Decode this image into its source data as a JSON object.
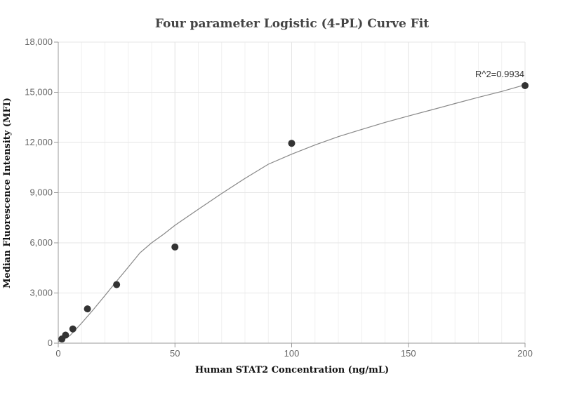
{
  "chart_data": {
    "type": "scatter",
    "title": "Four parameter Logistic (4-PL) Curve Fit",
    "xlabel": "Human STAT2 Concentration (ng/mL)",
    "ylabel": "Median Fluorescence Intensity (MFI)",
    "xlim": [
      0,
      200
    ],
    "ylim": [
      0,
      18000
    ],
    "x_ticks": [
      0,
      50,
      100,
      150,
      200
    ],
    "x_tick_labels": [
      "0",
      "50",
      "100",
      "150",
      "200"
    ],
    "y_ticks": [
      0,
      3000,
      6000,
      9000,
      12000,
      15000,
      18000
    ],
    "y_tick_labels": [
      "0",
      "3,000",
      "6,000",
      "9,000",
      "12,000",
      "15,000",
      "18,000"
    ],
    "grid": true,
    "points": {
      "x": [
        1.56,
        3.125,
        6.25,
        12.5,
        25,
        50,
        100,
        200
      ],
      "y": [
        250,
        480,
        850,
        2050,
        3500,
        5750,
        11950,
        15400
      ]
    },
    "fit_curve": {
      "x": [
        0,
        5,
        10,
        15,
        20,
        25,
        30,
        35,
        40,
        45,
        50,
        60,
        70,
        80,
        90,
        100,
        110,
        120,
        130,
        140,
        150,
        160,
        170,
        180,
        190,
        200
      ],
      "y": [
        80,
        450,
        1200,
        2000,
        2850,
        3700,
        4550,
        5400,
        6000,
        6500,
        7050,
        8000,
        8950,
        9850,
        10700,
        11300,
        11850,
        12350,
        12780,
        13200,
        13580,
        13950,
        14330,
        14700,
        15050,
        15450
      ]
    },
    "annotation": "R^2=0.9934",
    "colors": {
      "point": "#333333",
      "curve": "#888888",
      "grid": "#e6e6e6",
      "axis": "#999999"
    }
  }
}
